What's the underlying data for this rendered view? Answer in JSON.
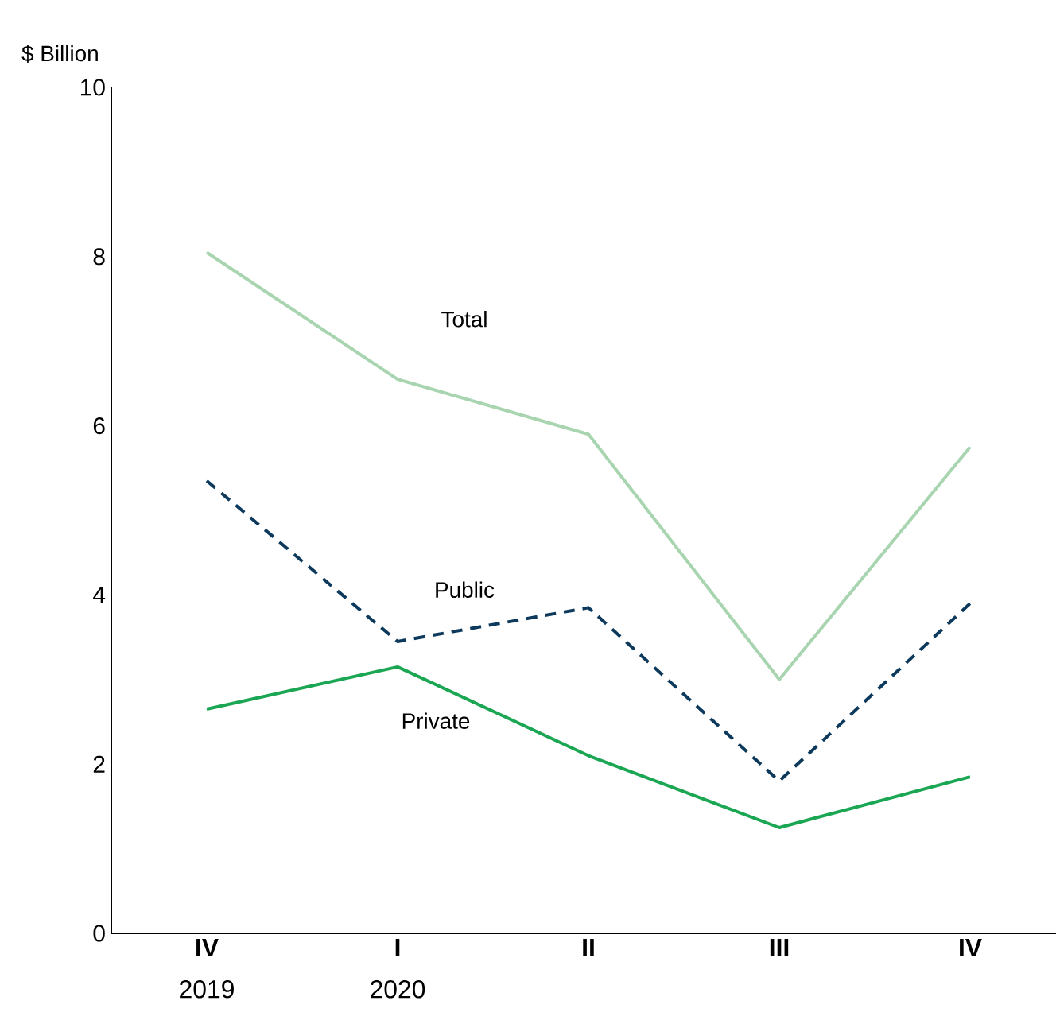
{
  "chart_data": {
    "type": "line",
    "ylabel": "$ Billion",
    "categories": [
      "IV",
      "I",
      "II",
      "III",
      "IV"
    ],
    "series": [
      {
        "name": "Total",
        "color": "#a8d5b0",
        "line_style": "solid",
        "values": [
          8.05,
          6.55,
          5.9,
          3.0,
          5.75
        ]
      },
      {
        "name": "Public",
        "color": "#0d3a5c",
        "line_style": "dashed",
        "values": [
          5.35,
          3.45,
          3.85,
          1.8,
          3.9
        ]
      },
      {
        "name": "Private",
        "color": "#1aa653",
        "line_style": "solid",
        "values": [
          2.65,
          3.15,
          2.1,
          1.25,
          1.85
        ]
      }
    ],
    "ylim": [
      0,
      10
    ],
    "yticks": [
      0,
      2,
      4,
      6,
      8,
      10
    ],
    "grid": false,
    "annotations": [
      "2019",
      "2020"
    ]
  }
}
